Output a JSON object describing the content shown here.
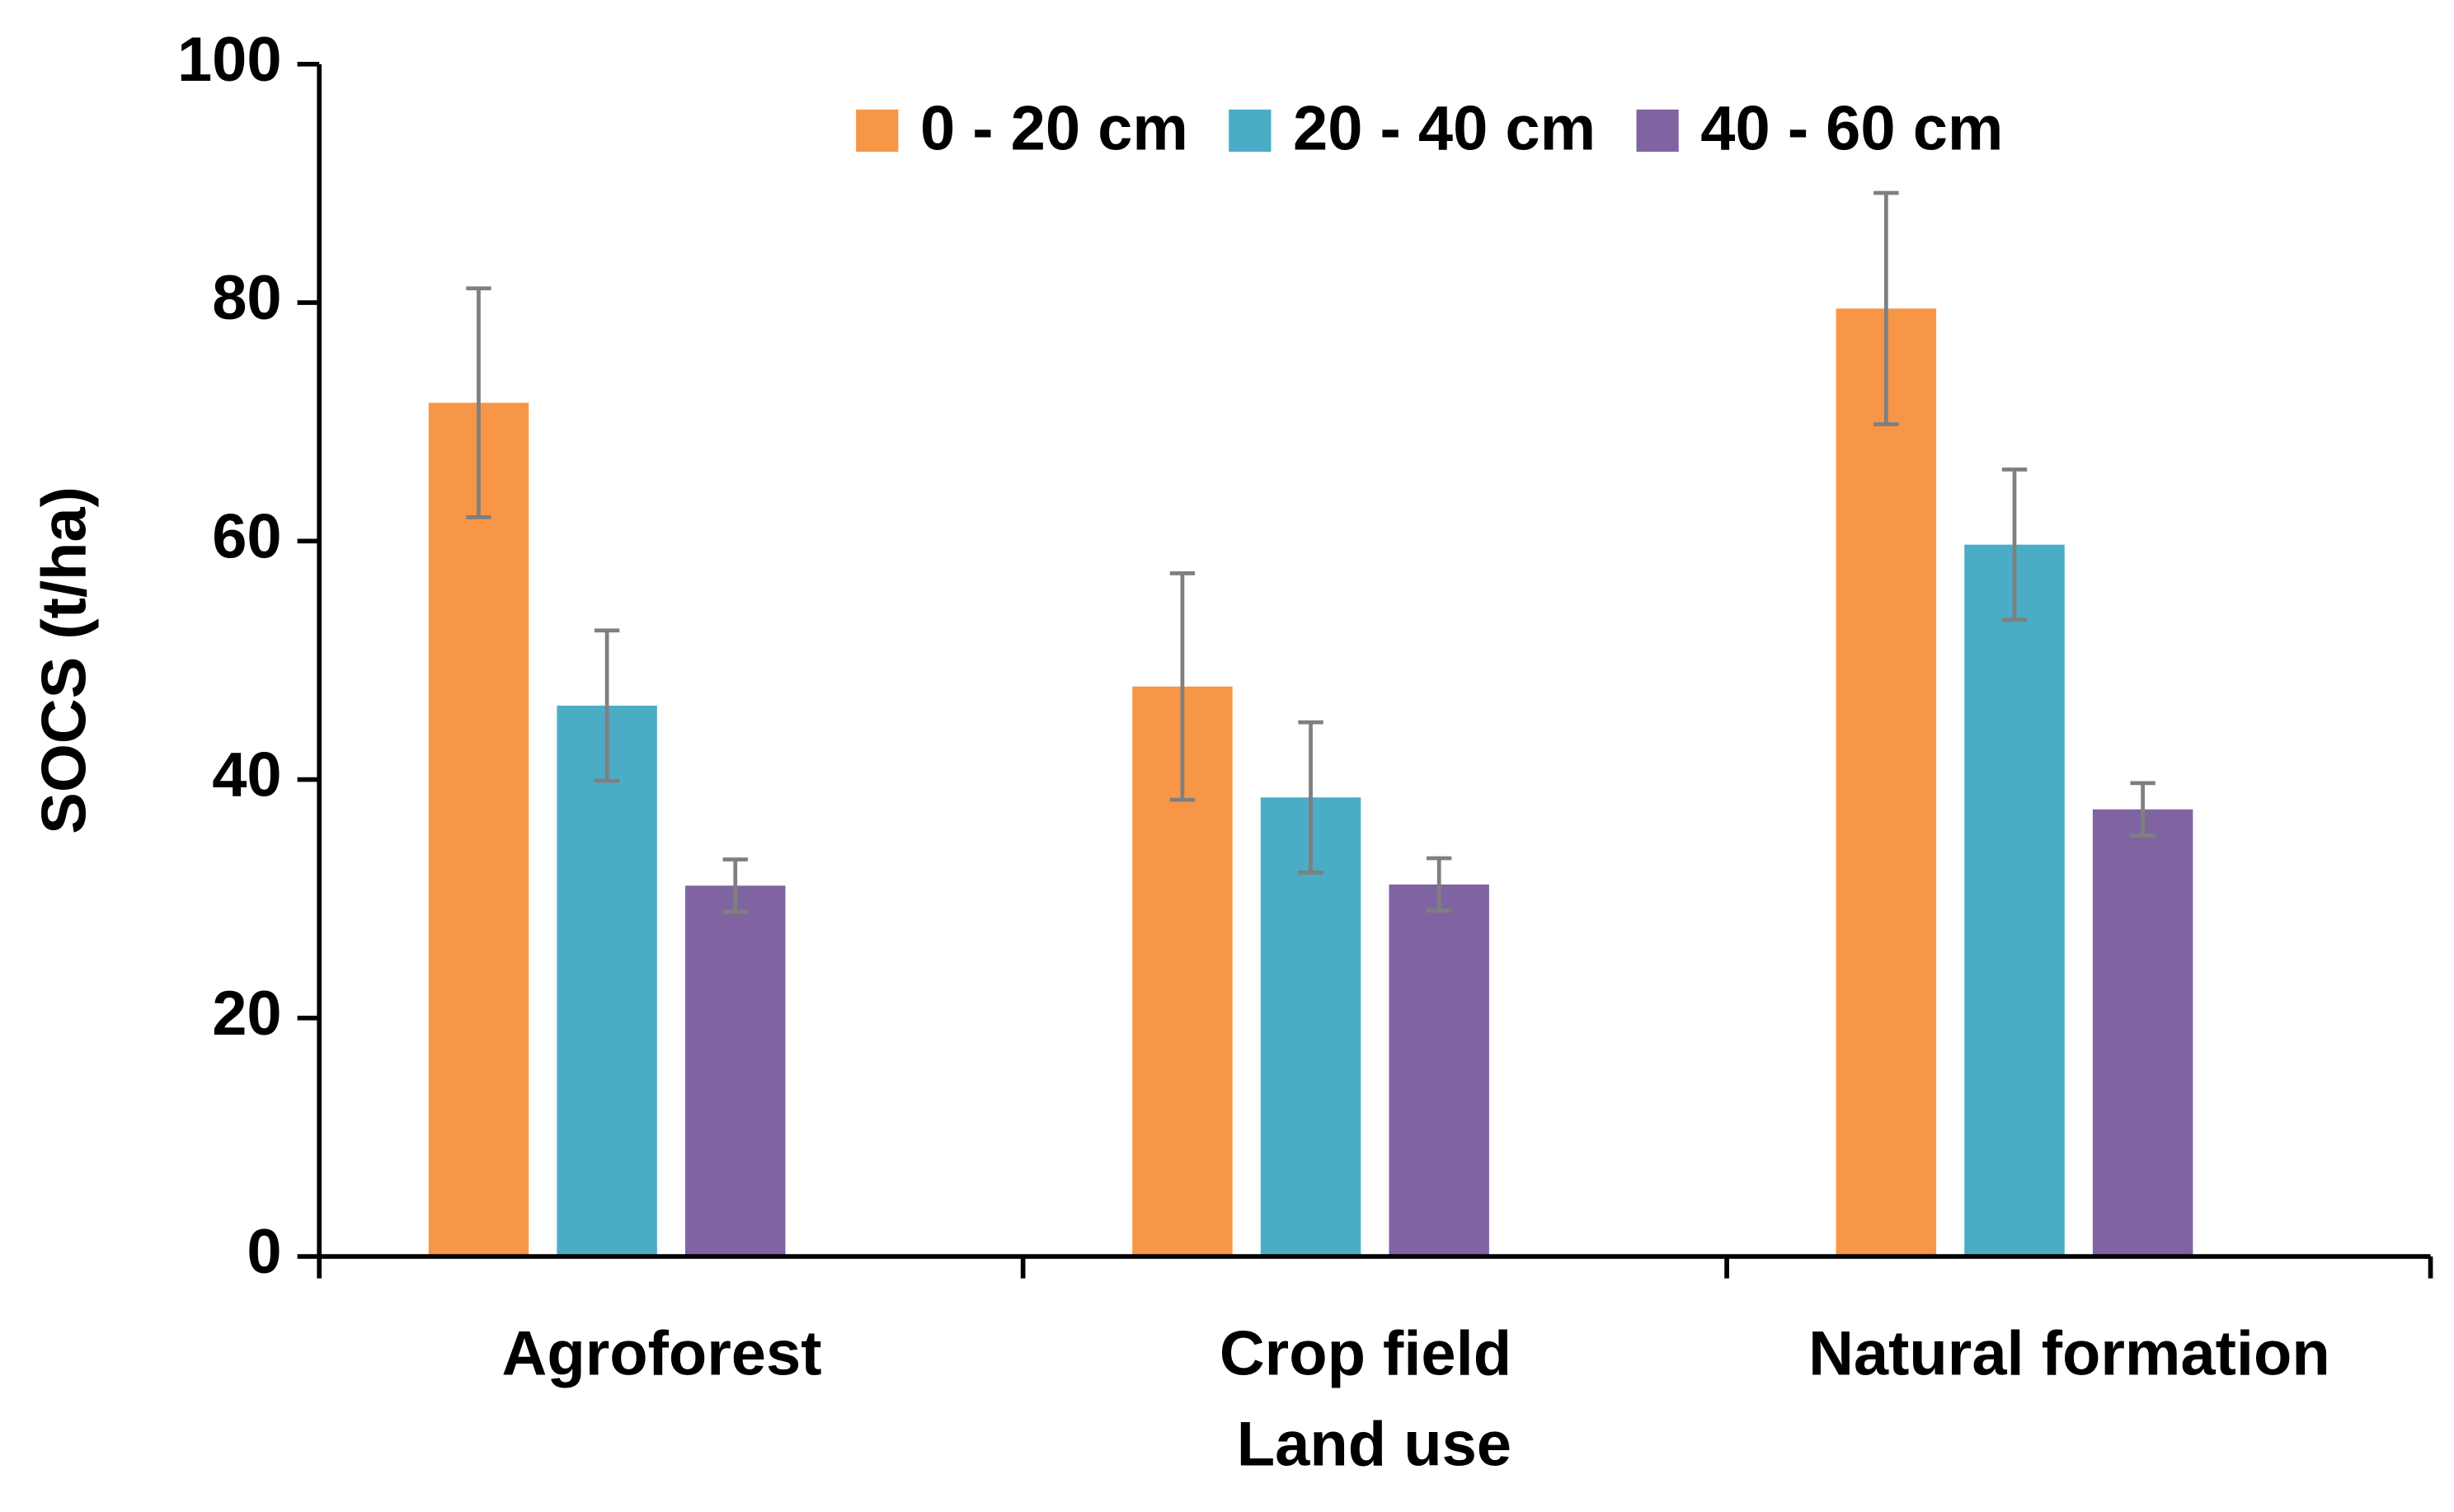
{
  "chart_data": {
    "type": "bar",
    "x_label": "Land use",
    "y_label": "SOCS (t/ha)",
    "categories": [
      "Agroforest",
      "Crop field",
      "Natural formation"
    ],
    "series": [
      {
        "name": "0 - 20 cm",
        "color": "#f79646",
        "values": [
          71.6,
          47.8,
          79.5
        ],
        "errors": [
          9.6,
          9.5,
          9.7
        ]
      },
      {
        "name": "20 - 40 cm",
        "color": "#4bacc6",
        "values": [
          46.2,
          38.5,
          59.7
        ],
        "errors": [
          6.3,
          6.3,
          6.3
        ]
      },
      {
        "name": "40 - 60 cm",
        "color": "#8064a2",
        "values": [
          31.1,
          31.2,
          37.5
        ],
        "errors": [
          2.2,
          2.2,
          2.2
        ]
      }
    ],
    "ylim": [
      0,
      100
    ],
    "yticks": [
      0,
      20,
      40,
      60,
      80,
      100
    ],
    "error_color": "#7f7f7f",
    "legend": "top"
  }
}
